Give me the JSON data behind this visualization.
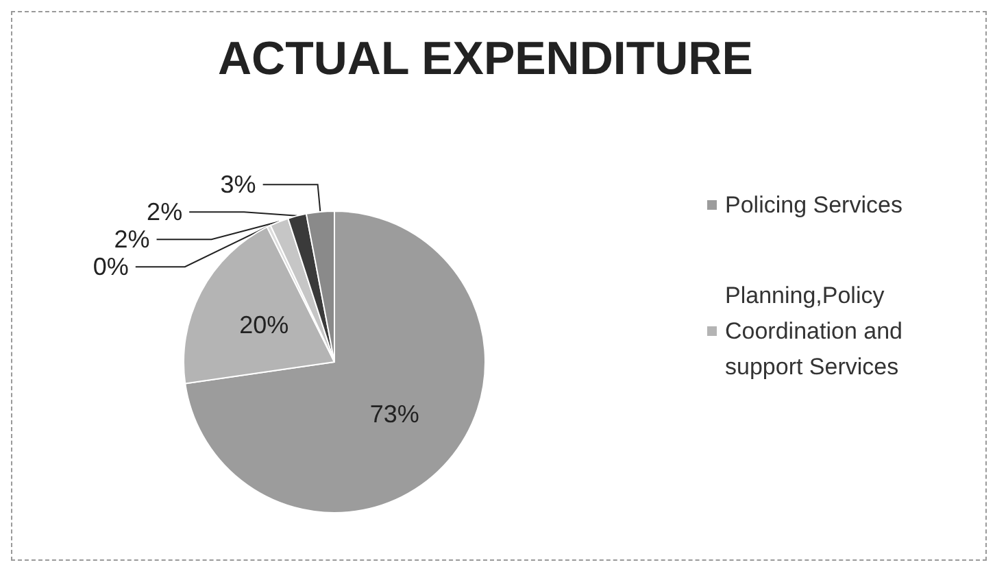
{
  "chart_data": {
    "type": "pie",
    "title": "ACTUAL EXPENDITURE",
    "categories": [
      "Policing Services",
      "Planning,Policy Coordination and support Services",
      null,
      null,
      null,
      null
    ],
    "values": [
      73,
      20,
      0.4,
      2,
      2,
      3
    ],
    "value_labels": [
      "73%",
      "20%",
      "0%",
      "2%",
      "2%",
      "3%"
    ],
    "colors": [
      "#9c9c9c",
      "#b4b4b4",
      "#dcdcdc",
      "#c6c6c6",
      "#3a3a3a",
      "#8a8a8a"
    ],
    "legend": "right"
  }
}
